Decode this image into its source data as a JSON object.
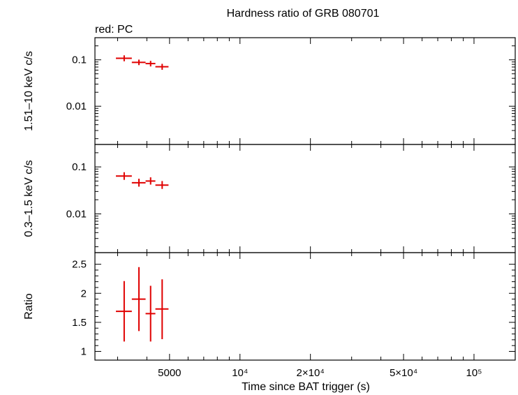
{
  "chart_data": {
    "type": "scatter",
    "title": "Hardness ratio of GRB 080701",
    "subtitle": "red: PC",
    "xlabel": "Time since BAT trigger (s)",
    "x_scale": "log",
    "xlim": [
      2400,
      150000
    ],
    "x_ticks": [
      {
        "value": 5000,
        "label": "5000"
      },
      {
        "value": 10000,
        "label": "10⁴"
      },
      {
        "value": 20000,
        "label": "2×10⁴"
      },
      {
        "value": 50000,
        "label": "5×10⁴"
      },
      {
        "value": 100000,
        "label": "10⁵"
      }
    ],
    "color": "#e00000",
    "panels": [
      {
        "ylabel": "1.51–10 keV c/s",
        "y_scale": "log",
        "ylim": [
          0.0015,
          0.3
        ],
        "y_ticks": [
          {
            "value": 0.1,
            "label": "0.1"
          },
          {
            "value": 0.01,
            "label": "0.01"
          }
        ],
        "points": [
          {
            "x": 3200,
            "xlo": 2950,
            "xhi": 3450,
            "y": 0.108,
            "ylo": 0.093,
            "yhi": 0.125
          },
          {
            "x": 3700,
            "xlo": 3450,
            "xhi": 3950,
            "y": 0.088,
            "ylo": 0.077,
            "yhi": 0.101
          },
          {
            "x": 4150,
            "xlo": 3950,
            "xhi": 4350,
            "y": 0.083,
            "ylo": 0.072,
            "yhi": 0.095
          },
          {
            "x": 4650,
            "xlo": 4350,
            "xhi": 4950,
            "y": 0.071,
            "ylo": 0.061,
            "yhi": 0.082
          }
        ]
      },
      {
        "ylabel": "0.3–1.5 keV c/s",
        "y_scale": "log",
        "ylim": [
          0.0015,
          0.3
        ],
        "y_ticks": [
          {
            "value": 0.1,
            "label": "0.1"
          },
          {
            "value": 0.01,
            "label": "0.01"
          }
        ],
        "points": [
          {
            "x": 3200,
            "xlo": 2950,
            "xhi": 3450,
            "y": 0.064,
            "ylo": 0.053,
            "yhi": 0.077
          },
          {
            "x": 3700,
            "xlo": 3450,
            "xhi": 3950,
            "y": 0.046,
            "ylo": 0.038,
            "yhi": 0.056
          },
          {
            "x": 4150,
            "xlo": 3950,
            "xhi": 4350,
            "y": 0.05,
            "ylo": 0.042,
            "yhi": 0.06
          },
          {
            "x": 4650,
            "xlo": 4350,
            "xhi": 4950,
            "y": 0.041,
            "ylo": 0.034,
            "yhi": 0.05
          }
        ]
      },
      {
        "ylabel": "Ratio",
        "y_scale": "linear",
        "ylim": [
          0.85,
          2.7
        ],
        "y_ticks": [
          {
            "value": 1,
            "label": "1"
          },
          {
            "value": 1.5,
            "label": "1.5"
          },
          {
            "value": 2,
            "label": "2"
          },
          {
            "value": 2.5,
            "label": "2.5"
          }
        ],
        "points": [
          {
            "x": 3200,
            "xlo": 2950,
            "xhi": 3450,
            "y": 1.69,
            "ylo": 1.17,
            "yhi": 2.21
          },
          {
            "x": 3700,
            "xlo": 3450,
            "xhi": 3950,
            "y": 1.9,
            "ylo": 1.35,
            "yhi": 2.45
          },
          {
            "x": 4150,
            "xlo": 3950,
            "xhi": 4350,
            "y": 1.65,
            "ylo": 1.17,
            "yhi": 2.13
          },
          {
            "x": 4650,
            "xlo": 4350,
            "xhi": 4950,
            "y": 1.73,
            "ylo": 1.21,
            "yhi": 2.24
          }
        ]
      }
    ]
  }
}
